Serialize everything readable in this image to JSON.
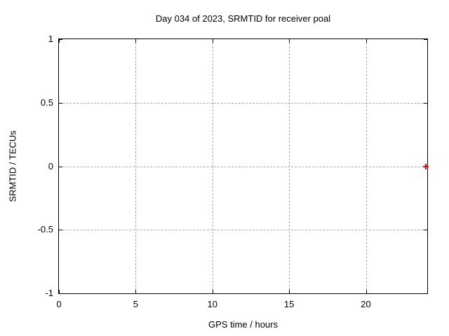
{
  "chart_data": {
    "type": "scatter",
    "title": "Day 034 of 2023, SRMTID for receiver poal",
    "xlabel": "GPS time / hours",
    "ylabel": "SRMTID / TECUs",
    "xlim": [
      0,
      24
    ],
    "ylim": [
      -1,
      1
    ],
    "xticks": [
      0,
      5,
      10,
      15,
      20
    ],
    "xtick_labels": [
      "0",
      "5",
      "10",
      "15",
      "20"
    ],
    "yticks": [
      -1,
      -0.5,
      0,
      0.5,
      1
    ],
    "ytick_labels": [
      "-1",
      "-0.5",
      "0",
      "0.5",
      "1"
    ],
    "grid": true,
    "legend_position": "none",
    "series": [
      {
        "name": "SRMTID",
        "marker": "plus",
        "color": "#ff0000",
        "points": [
          {
            "x": 23.9,
            "y": 0.0
          }
        ]
      }
    ]
  },
  "colors": {
    "background": "#ffffff",
    "border": "#000000",
    "grid": "#a8a8a8",
    "text": "#000000",
    "point": "#ff0000"
  }
}
